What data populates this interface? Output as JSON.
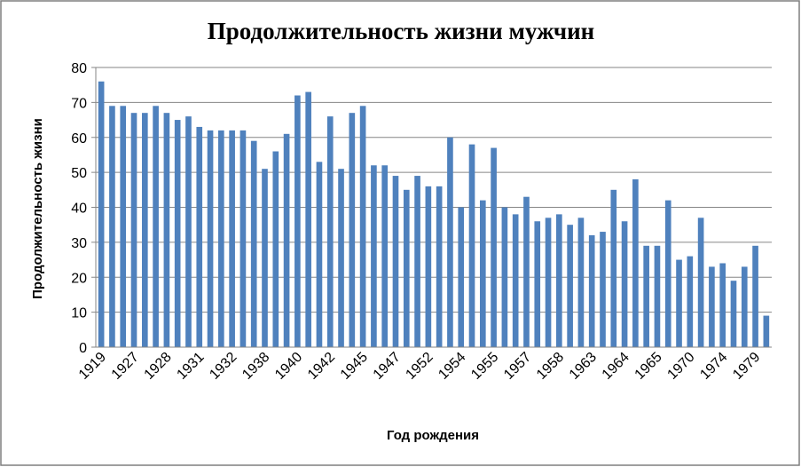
{
  "chart_data": {
    "type": "bar",
    "title": "Продолжительность жизни мужчин",
    "x_label": "Год рождения",
    "y_label": "Продолжительность жизни",
    "categories": [
      "1919",
      null,
      null,
      "1927",
      null,
      null,
      "1928",
      null,
      null,
      "1931",
      null,
      null,
      "1932",
      null,
      null,
      "1938",
      null,
      null,
      "1940",
      null,
      null,
      "1942",
      null,
      null,
      "1945",
      null,
      null,
      "1947",
      null,
      null,
      "1952",
      null,
      null,
      "1954",
      null,
      null,
      "1955",
      null,
      null,
      "1957",
      null,
      null,
      "1958",
      null,
      null,
      "1963",
      null,
      null,
      "1964",
      null,
      null,
      "1965",
      null,
      null,
      "1970",
      null,
      null,
      "1974",
      null,
      null,
      "1979",
      null
    ],
    "values": [
      76,
      69,
      69,
      67,
      67,
      69,
      67,
      65,
      66,
      63,
      62,
      62,
      62,
      62,
      59,
      51,
      56,
      61,
      72,
      73,
      53,
      66,
      51,
      67,
      69,
      52,
      52,
      49,
      45,
      49,
      46,
      46,
      60,
      40,
      58,
      42,
      57,
      40,
      38,
      43,
      36,
      37,
      38,
      35,
      37,
      32,
      33,
      45,
      36,
      48,
      29,
      29,
      42,
      25,
      26,
      37,
      23,
      24,
      19,
      23,
      29,
      9
    ],
    "color": "#4f81bd",
    "ylim": [
      0,
      80
    ],
    "yticks": [
      0,
      10,
      20,
      30,
      40,
      50,
      60,
      70,
      80
    ],
    "grid": true
  }
}
